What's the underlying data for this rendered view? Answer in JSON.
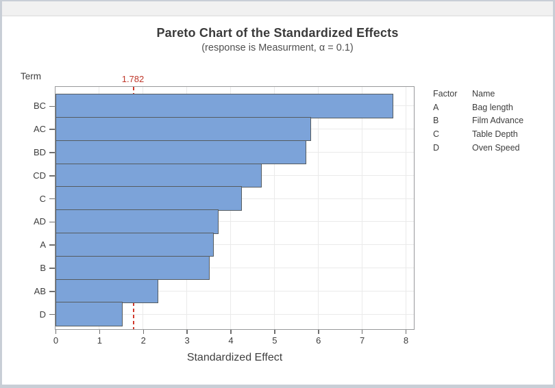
{
  "window": {
    "titlebar": ""
  },
  "chart": {
    "title": "Pareto Chart of the Standardized Effects",
    "subtitle": "(response is Measurment, α = 0.1)",
    "y_axis_title": "Term",
    "x_axis_title": "Standardized Effect",
    "reference_label": "1.782"
  },
  "chart_data": {
    "type": "bar",
    "orientation": "horizontal",
    "title": "Pareto Chart of the Standardized Effects",
    "subtitle": "(response is Measurment, α = 0.1)",
    "xlabel": "Standardized Effect",
    "ylabel": "Term",
    "categories": [
      "BC",
      "AC",
      "BD",
      "CD",
      "C",
      "AD",
      "A",
      "B",
      "AB",
      "D"
    ],
    "values": [
      7.7,
      5.82,
      5.7,
      4.69,
      4.23,
      3.7,
      3.6,
      3.5,
      2.33,
      1.51
    ],
    "reference_line": 1.782,
    "xlim": [
      0,
      8
    ],
    "x_ticks": [
      0,
      1,
      2,
      3,
      4,
      5,
      6,
      7,
      8
    ],
    "grid": true,
    "legend_position": "right",
    "bar_color": "#7CA3D9",
    "bar_border_color": "#555B5F",
    "reference_color": "#D0382C",
    "reference_label_color": "#BE3528"
  },
  "legend": {
    "header": {
      "factor": "Factor",
      "name": "Name"
    },
    "rows": [
      {
        "factor": "A",
        "name": "Bag length"
      },
      {
        "factor": "B",
        "name": "Film Advance"
      },
      {
        "factor": "C",
        "name": "Table Depth"
      },
      {
        "factor": "D",
        "name": "Oven Speed"
      }
    ]
  }
}
